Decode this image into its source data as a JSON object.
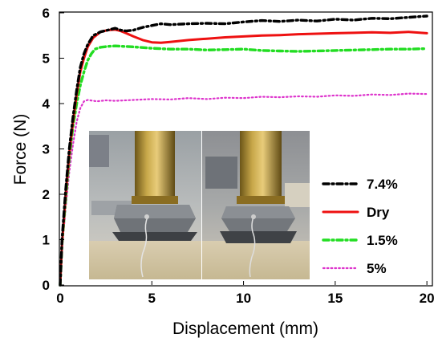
{
  "chart_data": {
    "type": "line",
    "title": "",
    "xlabel": "Displacement (mm)",
    "ylabel": "Force (N)",
    "xlim": [
      0,
      20.3
    ],
    "ylim": [
      0,
      6
    ],
    "xticks": [
      0,
      5,
      10,
      15,
      20
    ],
    "yticks": [
      0,
      1,
      2,
      3,
      4,
      5,
      6
    ],
    "grid": false,
    "legend_position": "right",
    "series": [
      {
        "name": "7.4%",
        "color": "#000000",
        "style": "dash-dot",
        "x": [
          0,
          0.1,
          0.3,
          0.5,
          0.7,
          0.9,
          1.1,
          1.3,
          1.5,
          1.8,
          2.2,
          2.6,
          3.0,
          3.3,
          3.6,
          4.0,
          4.5,
          5.0,
          5.5,
          6.0,
          7.0,
          8.0,
          9.0,
          10.0,
          11.0,
          12.0,
          13.0,
          14.0,
          15.0,
          16.0,
          17.0,
          18.0,
          19.0,
          20.0
        ],
        "y": [
          0,
          1.0,
          2.1,
          3.0,
          3.7,
          4.3,
          4.8,
          5.1,
          5.3,
          5.5,
          5.58,
          5.62,
          5.66,
          5.62,
          5.6,
          5.62,
          5.68,
          5.72,
          5.76,
          5.74,
          5.76,
          5.77,
          5.76,
          5.8,
          5.83,
          5.81,
          5.84,
          5.82,
          5.86,
          5.84,
          5.88,
          5.87,
          5.9,
          5.93
        ]
      },
      {
        "name": "Dry",
        "color": "#ee1111",
        "style": "solid",
        "x": [
          0,
          0.1,
          0.3,
          0.5,
          0.7,
          0.9,
          1.1,
          1.3,
          1.5,
          1.8,
          2.2,
          2.6,
          3.0,
          3.3,
          3.6,
          4.0,
          4.5,
          5.0,
          5.5,
          6.0,
          7.0,
          8.0,
          9.0,
          10.0,
          11.0,
          12.0,
          13.0,
          14.0,
          15.0,
          16.0,
          17.0,
          18.0,
          19.0,
          20.0
        ],
        "y": [
          0,
          0.9,
          2.0,
          2.9,
          3.6,
          4.2,
          4.7,
          5.0,
          5.25,
          5.45,
          5.58,
          5.62,
          5.63,
          5.6,
          5.55,
          5.48,
          5.4,
          5.35,
          5.34,
          5.36,
          5.4,
          5.43,
          5.46,
          5.48,
          5.5,
          5.51,
          5.53,
          5.54,
          5.55,
          5.56,
          5.57,
          5.56,
          5.58,
          5.55
        ]
      },
      {
        "name": "1.5%",
        "color": "#22dd22",
        "style": "dash-dot",
        "x": [
          0,
          0.1,
          0.3,
          0.5,
          0.7,
          0.9,
          1.1,
          1.3,
          1.5,
          1.7,
          1.9,
          2.2,
          2.6,
          3.0,
          4.0,
          5.0,
          6.0,
          7.0,
          8.0,
          9.0,
          10.0,
          11.0,
          12.0,
          13.0,
          14.0,
          15.0,
          16.0,
          17.0,
          18.0,
          19.0,
          20.0
        ],
        "y": [
          0,
          0.9,
          1.9,
          2.8,
          3.5,
          4.0,
          4.4,
          4.7,
          4.95,
          5.1,
          5.2,
          5.24,
          5.26,
          5.27,
          5.25,
          5.22,
          5.2,
          5.2,
          5.18,
          5.19,
          5.2,
          5.17,
          5.16,
          5.15,
          5.16,
          5.17,
          5.18,
          5.19,
          5.2,
          5.2,
          5.21
        ]
      },
      {
        "name": "5%",
        "color": "#dd33cc",
        "style": "dotted",
        "x": [
          0,
          0.1,
          0.3,
          0.5,
          0.7,
          0.9,
          1.1,
          1.3,
          1.5,
          2.0,
          2.5,
          3.0,
          4.0,
          5.0,
          6.0,
          7.0,
          8.0,
          9.0,
          10.0,
          11.0,
          12.0,
          13.0,
          14.0,
          15.0,
          16.0,
          17.0,
          18.0,
          19.0,
          20.0
        ],
        "y": [
          0,
          0.8,
          1.7,
          2.5,
          3.1,
          3.6,
          3.9,
          4.05,
          4.08,
          4.05,
          4.07,
          4.06,
          4.08,
          4.1,
          4.09,
          4.12,
          4.1,
          4.13,
          4.12,
          4.15,
          4.14,
          4.16,
          4.15,
          4.18,
          4.17,
          4.2,
          4.19,
          4.22,
          4.21
        ]
      }
    ]
  },
  "inset_photos": [
    {
      "description_icon": "compression-rod-dry-sample-photo"
    },
    {
      "description_icon": "compression-rod-wet-sample-photo"
    }
  ]
}
